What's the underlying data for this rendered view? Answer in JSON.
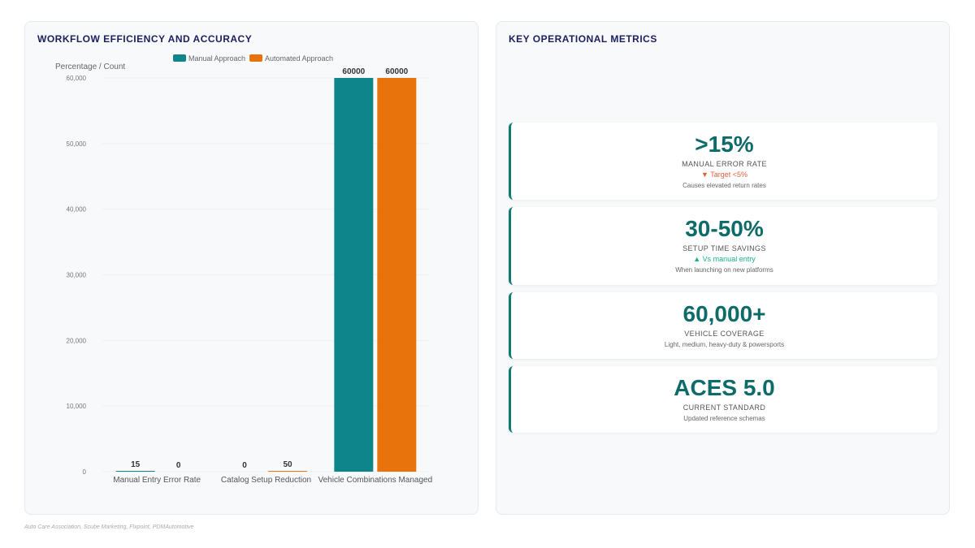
{
  "left_panel": {
    "title": "WORKFLOW EFFICIENCY AND ACCURACY"
  },
  "right_panel": {
    "title": "KEY OPERATIONAL METRICS"
  },
  "chart_data": {
    "type": "bar",
    "ylabel": "Percentage / Count",
    "categories": [
      "Manual Entry Error Rate",
      "Catalog Setup Reduction",
      "Vehicle Combinations Managed"
    ],
    "series": [
      {
        "name": "Manual Approach",
        "color": "#0e858a",
        "values": [
          15,
          0,
          60000
        ]
      },
      {
        "name": "Automated Approach",
        "color": "#e8720c",
        "values": [
          0,
          50,
          60000
        ]
      }
    ],
    "ylim": [
      0,
      60000
    ],
    "yticks": [
      "0",
      "10,000",
      "20,000",
      "30,000",
      "40,000",
      "50,000",
      "60,000"
    ],
    "ytick_values": [
      0,
      10000,
      20000,
      30000,
      40000,
      50000,
      60000
    ],
    "legend": "top",
    "grid": true
  },
  "metrics": [
    {
      "value": ">15%",
      "label": "MANUAL ERROR RATE",
      "delta": "▼ Target <5%",
      "delta_dir": "down",
      "desc": "Causes elevated return rates"
    },
    {
      "value": "30-50%",
      "label": "SETUP TIME SAVINGS",
      "delta": "▲ Vs manual entry",
      "delta_dir": "up",
      "desc": "When launching on new platforms"
    },
    {
      "value": "60,000+",
      "label": "VEHICLE COVERAGE",
      "delta": "",
      "delta_dir": "",
      "desc": "Light, medium, heavy-duty & powersports"
    },
    {
      "value": "ACES 5.0",
      "label": "CURRENT STANDARD",
      "delta": "",
      "delta_dir": "",
      "desc": "Updated reference schemas"
    }
  ],
  "footnote": "Auto Care Association, Scube Marketing, Flxpoint, PDMAutomotive"
}
